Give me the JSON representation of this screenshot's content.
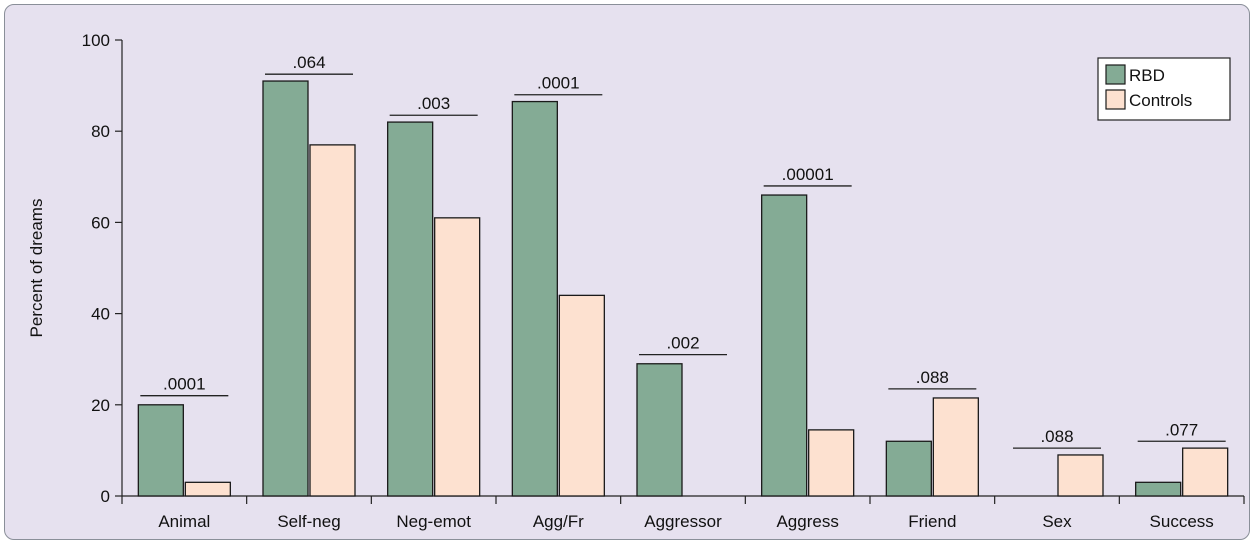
{
  "chart_data": {
    "type": "bar",
    "ylabel": "Percent of dreams",
    "xlabel": "",
    "ylim": [
      0,
      100
    ],
    "yticks": [
      0,
      20,
      40,
      60,
      80,
      100
    ],
    "categories": [
      "Animal",
      "Self-neg",
      "Neg-emot",
      "Agg/Fr",
      "Aggressor",
      "Aggress",
      "Friend",
      "Sex",
      "Success"
    ],
    "series": [
      {
        "name": "RBD",
        "color": "#84ab95",
        "values": [
          20,
          91,
          82,
          86.5,
          29,
          66,
          12,
          0,
          3
        ]
      },
      {
        "name": "Controls",
        "color": "#fde1d0",
        "values": [
          3,
          77,
          61,
          44,
          0,
          14.5,
          21.5,
          9,
          10.5
        ]
      }
    ],
    "annotations": [
      {
        "category": "Animal",
        "label": ".0001",
        "y": 22
      },
      {
        "category": "Self-neg",
        "label": ".064",
        "y": 92.5
      },
      {
        "category": "Neg-emot",
        "label": ".003",
        "y": 83.5
      },
      {
        "category": "Agg/Fr",
        "label": ".0001",
        "y": 88
      },
      {
        "category": "Aggressor",
        "label": ".002",
        "y": 31
      },
      {
        "category": "Aggress",
        "label": ".00001",
        "y": 68
      },
      {
        "category": "Friend",
        "label": ".088",
        "y": 23.5
      },
      {
        "category": "Sex",
        "label": ".088",
        "y": 10.5
      },
      {
        "category": "Success",
        "label": ".077",
        "y": 12
      }
    ],
    "legend_position": "top-right",
    "grid": false
  }
}
